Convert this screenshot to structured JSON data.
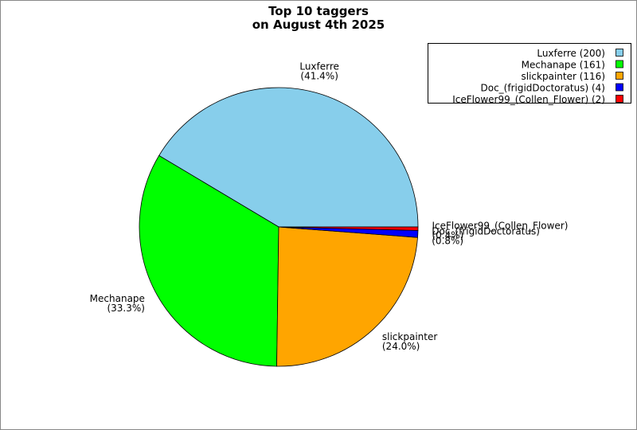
{
  "chart_data": {
    "type": "pie",
    "title": "Top 10 taggers",
    "subtitle": "on August 4th 2025",
    "categories": [
      "Luxferre",
      "Mechanape",
      "slickpainter",
      "Doc_(frigidDoctoratus)",
      "IceFlower99_(Collen_Flower)"
    ],
    "values": [
      41.4,
      33.3,
      24.0,
      0.8,
      0.4
    ],
    "value_labels": [
      "(41.4%)",
      "(33.3%)",
      "(24.0%)",
      "(0.8%)",
      "(0.4%)"
    ],
    "colors": [
      "#87ceeb",
      "#00ff00",
      "#ffa500",
      "#0000ff",
      "#ff0000"
    ],
    "legend_labels": [
      "Luxferre (200)",
      "Mechanape (161)",
      "slickpainter (116)",
      "Doc_(frigidDoctoratus) (4)",
      "IceFlower99_(Collen_Flower) (2)"
    ],
    "legend_position": "upper right"
  }
}
